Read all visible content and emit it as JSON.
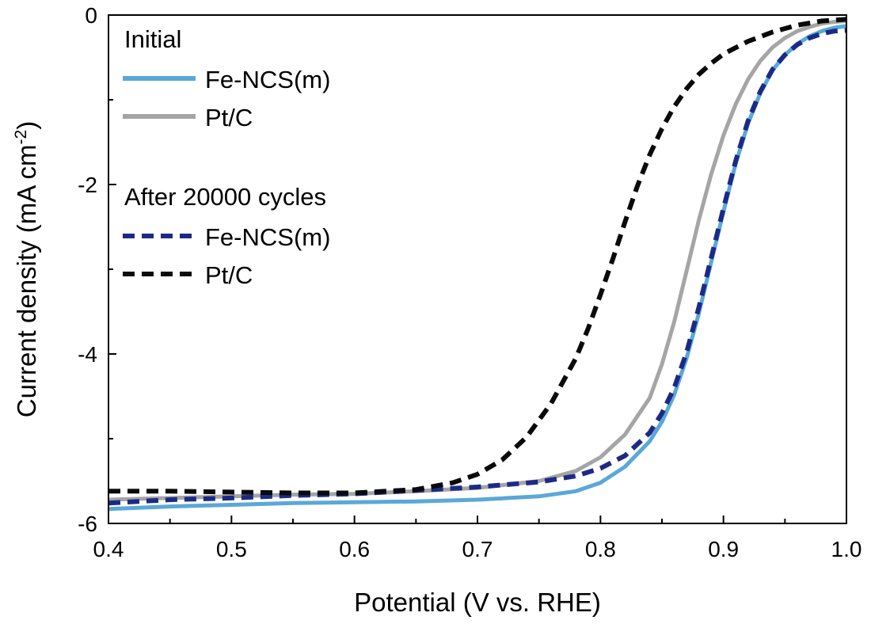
{
  "chart_data": {
    "type": "line",
    "title": "",
    "xlabel": "Potential (V vs. RHE)",
    "ylabel_main": "Current density (mA cm",
    "ylabel_sup": "-2",
    "ylabel_close": ")",
    "xlim": [
      0.4,
      1.0
    ],
    "ylim": [
      -6,
      0
    ],
    "x_ticks": [
      0.4,
      0.5,
      0.6,
      0.7,
      0.8,
      0.9,
      1.0
    ],
    "x_tick_labels": [
      "0.4",
      "0.5",
      "0.6",
      "0.7",
      "0.8",
      "0.9",
      "1.0"
    ],
    "y_ticks": [
      0,
      -2,
      -4,
      -6
    ],
    "y_tick_labels": [
      "0",
      "-2",
      "-4",
      "-6"
    ],
    "grid": false,
    "legend_position": "top-left",
    "legend": {
      "group1_title": "Initial",
      "group2_title": "After 20000 cycles"
    },
    "series": [
      {
        "name": "Fe-NCS(m)",
        "group": "Initial",
        "color": "#5aa8d8",
        "dash": "solid",
        "x": [
          0.4,
          0.45,
          0.5,
          0.55,
          0.6,
          0.65,
          0.7,
          0.75,
          0.78,
          0.8,
          0.82,
          0.84,
          0.85,
          0.86,
          0.87,
          0.88,
          0.89,
          0.9,
          0.91,
          0.92,
          0.93,
          0.94,
          0.95,
          0.96,
          0.97,
          0.98,
          0.99,
          1.0
        ],
        "y": [
          -5.83,
          -5.8,
          -5.78,
          -5.76,
          -5.75,
          -5.74,
          -5.72,
          -5.68,
          -5.62,
          -5.52,
          -5.33,
          -5.03,
          -4.8,
          -4.48,
          -4.05,
          -3.52,
          -2.92,
          -2.32,
          -1.75,
          -1.28,
          -0.92,
          -0.65,
          -0.47,
          -0.34,
          -0.25,
          -0.19,
          -0.15,
          -0.13
        ]
      },
      {
        "name": "Pt/C",
        "group": "Initial",
        "color": "#a5a5a5",
        "dash": "solid",
        "x": [
          0.4,
          0.45,
          0.5,
          0.55,
          0.6,
          0.65,
          0.7,
          0.75,
          0.78,
          0.8,
          0.82,
          0.84,
          0.85,
          0.86,
          0.87,
          0.88,
          0.89,
          0.9,
          0.91,
          0.92,
          0.93,
          0.94,
          0.95,
          0.96,
          0.97,
          0.98,
          0.99,
          1.0
        ],
        "y": [
          -5.72,
          -5.7,
          -5.68,
          -5.66,
          -5.65,
          -5.62,
          -5.58,
          -5.5,
          -5.38,
          -5.22,
          -4.95,
          -4.52,
          -4.12,
          -3.62,
          -3.02,
          -2.42,
          -1.88,
          -1.42,
          -1.05,
          -0.76,
          -0.54,
          -0.38,
          -0.27,
          -0.19,
          -0.14,
          -0.1,
          -0.08,
          -0.07
        ]
      },
      {
        "name": "Fe-NCS(m)",
        "group": "After 20000 cycles",
        "color": "#1c2a86",
        "dash": "dashed",
        "x": [
          0.4,
          0.45,
          0.5,
          0.55,
          0.6,
          0.65,
          0.7,
          0.75,
          0.78,
          0.8,
          0.82,
          0.84,
          0.85,
          0.86,
          0.87,
          0.88,
          0.89,
          0.9,
          0.91,
          0.92,
          0.93,
          0.94,
          0.95,
          0.96,
          0.97,
          0.98,
          0.99,
          1.0
        ],
        "y": [
          -5.76,
          -5.72,
          -5.7,
          -5.67,
          -5.65,
          -5.61,
          -5.57,
          -5.51,
          -5.44,
          -5.35,
          -5.2,
          -4.93,
          -4.7,
          -4.4,
          -3.98,
          -3.45,
          -2.87,
          -2.28,
          -1.72,
          -1.25,
          -0.9,
          -0.64,
          -0.47,
          -0.35,
          -0.27,
          -0.22,
          -0.19,
          -0.18
        ]
      },
      {
        "name": "Pt/C",
        "group": "After 20000 cycles",
        "color": "#0a0a0a",
        "dash": "dashed",
        "x": [
          0.4,
          0.45,
          0.5,
          0.55,
          0.6,
          0.65,
          0.68,
          0.7,
          0.72,
          0.74,
          0.76,
          0.78,
          0.79,
          0.8,
          0.81,
          0.82,
          0.83,
          0.84,
          0.85,
          0.86,
          0.87,
          0.88,
          0.89,
          0.9,
          0.92,
          0.94,
          0.96,
          0.98,
          1.0
        ],
        "y": [
          -5.62,
          -5.62,
          -5.63,
          -5.64,
          -5.64,
          -5.6,
          -5.52,
          -5.42,
          -5.25,
          -4.98,
          -4.58,
          -4.05,
          -3.7,
          -3.3,
          -2.88,
          -2.44,
          -2.02,
          -1.65,
          -1.34,
          -1.08,
          -0.87,
          -0.7,
          -0.57,
          -0.46,
          -0.31,
          -0.2,
          -0.12,
          -0.07,
          -0.05
        ]
      }
    ]
  }
}
